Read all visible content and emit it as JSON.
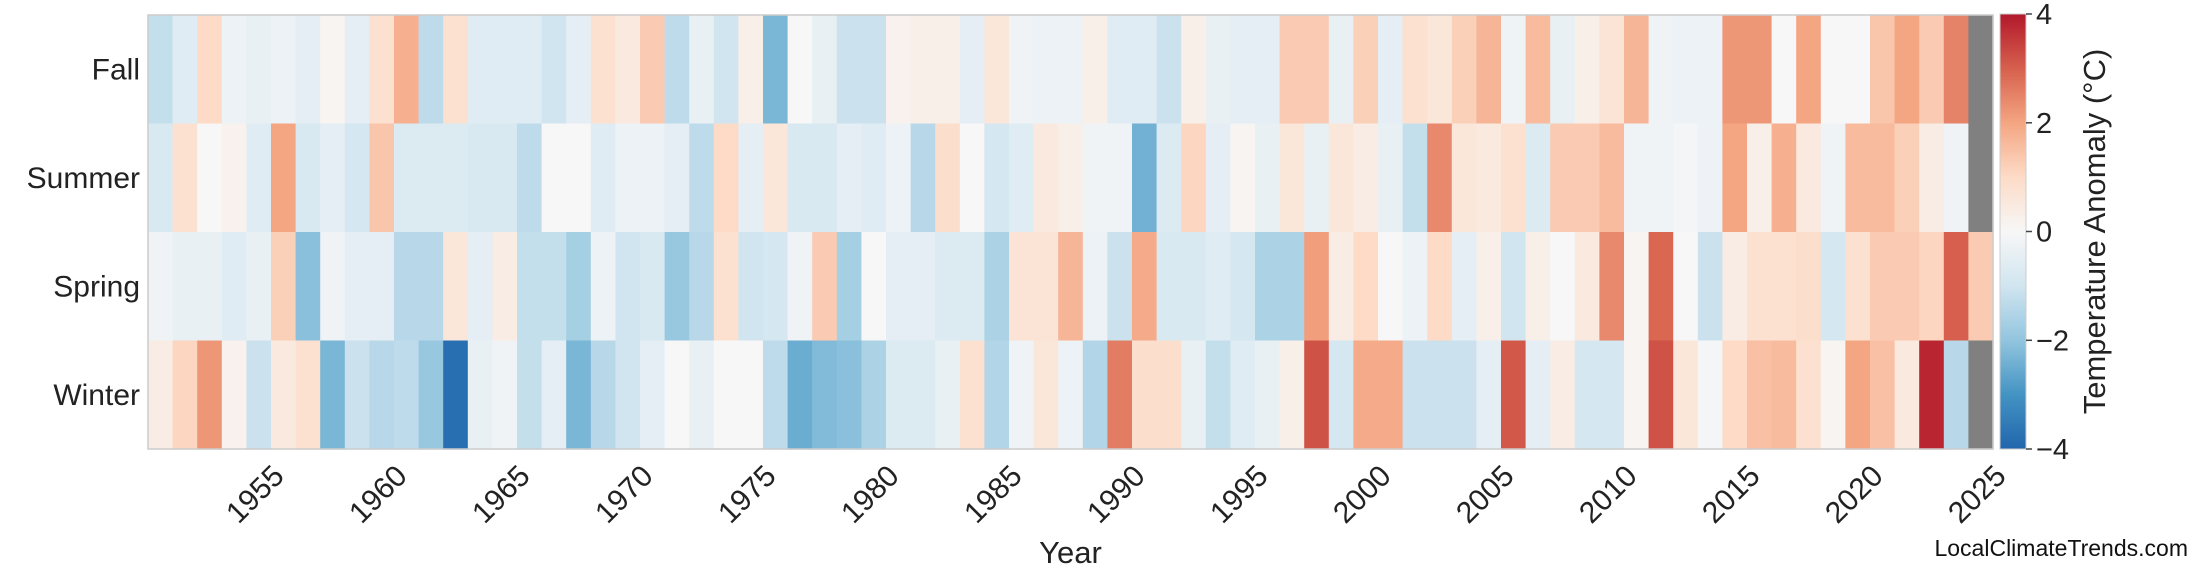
{
  "chart_data": {
    "type": "heatmap",
    "title": "",
    "xlabel": "Year",
    "colorbar_label": "Temperature Anomaly (°C)",
    "credit": "LocalClimateTrends.com",
    "rows": [
      "Fall",
      "Summer",
      "Spring",
      "Winter"
    ],
    "x_start": 1951,
    "x_end": 2025,
    "x_ticks": [
      "1955",
      "1960",
      "1965",
      "1970",
      "1975",
      "1980",
      "1985",
      "1990",
      "1995",
      "2000",
      "2005",
      "2010",
      "2015",
      "2020",
      "2025"
    ],
    "color_range": [
      -4,
      4
    ],
    "colorbar_ticks": [
      "4",
      "2",
      "0",
      "−2",
      "−4"
    ],
    "colorbar_tick_values": [
      4,
      2,
      0,
      -2,
      -4
    ],
    "missing_color": "#808080",
    "colormap": [
      "#2166ac",
      "#4393c3",
      "#92c5de",
      "#d1e5f0",
      "#f7f7f7",
      "#fddbc7",
      "#f4a582",
      "#d6604d",
      "#b2182b"
    ],
    "grid": false,
    "values": {
      "Fall": [
        -1.2,
        -0.6,
        1.0,
        -0.3,
        -0.4,
        -0.3,
        -0.5,
        0.1,
        -0.5,
        0.8,
        1.8,
        -1.3,
        0.8,
        -0.6,
        -0.6,
        -0.6,
        -1.0,
        -0.5,
        0.8,
        0.5,
        1.3,
        -1.3,
        -0.4,
        -1.0,
        0.3,
        -2.3,
        0.0,
        -0.4,
        -1.1,
        -1.1,
        0.2,
        0.3,
        0.3,
        -0.5,
        0.6,
        -0.2,
        -0.3,
        -0.3,
        0.3,
        -0.6,
        -0.6,
        -1.1,
        0.3,
        -0.4,
        -0.5,
        -0.5,
        1.3,
        1.3,
        -0.4,
        1.2,
        -0.5,
        0.8,
        0.6,
        1.2,
        1.7,
        -0.2,
        1.6,
        -0.4,
        0.3,
        0.7,
        1.7,
        -0.2,
        -0.3,
        -0.3,
        2.2,
        2.2,
        0.0,
        2.0,
        0.0,
        0.0,
        1.4,
        2.0,
        1.3,
        2.5,
        null
      ],
      "Summer": [
        -0.8,
        0.8,
        0.0,
        0.2,
        -0.6,
        2.0,
        -0.8,
        -0.5,
        -0.9,
        1.4,
        -0.7,
        -0.7,
        -0.7,
        -0.8,
        -0.8,
        -1.3,
        0.0,
        0.0,
        -0.6,
        -0.3,
        -0.3,
        -0.5,
        -1.3,
        1.0,
        -0.5,
        0.6,
        -0.8,
        -0.8,
        -0.5,
        -0.6,
        -0.3,
        -1.4,
        0.9,
        0.0,
        -0.9,
        -0.6,
        0.5,
        0.3,
        -0.2,
        -0.2,
        -2.4,
        -0.7,
        1.1,
        -0.5,
        0.1,
        -0.4,
        0.6,
        -0.4,
        0.6,
        0.4,
        -0.4,
        -1.2,
        2.4,
        0.6,
        0.5,
        0.8,
        -0.7,
        1.3,
        1.3,
        1.6,
        -0.2,
        -0.2,
        -0.1,
        -0.3,
        2.0,
        0.3,
        1.8,
        0.5,
        -0.2,
        1.6,
        1.6,
        1.2,
        0.4,
        -0.2,
        null
      ],
      "Spring": [
        -0.2,
        -0.4,
        -0.4,
        -0.6,
        -0.4,
        1.2,
        -2.1,
        -0.2,
        -0.5,
        -0.5,
        -1.4,
        -1.4,
        0.6,
        -0.5,
        0.4,
        -1.2,
        -1.2,
        -1.7,
        -0.3,
        -1.0,
        -0.8,
        -1.9,
        -1.4,
        0.8,
        -1.0,
        -0.9,
        -0.2,
        1.3,
        -1.7,
        0.0,
        -0.5,
        -0.5,
        -0.7,
        -0.7,
        -1.6,
        0.7,
        0.7,
        1.7,
        -0.3,
        -1.1,
        1.9,
        -0.8,
        -0.8,
        -0.6,
        -0.9,
        -1.6,
        -1.6,
        2.1,
        0.4,
        1.0,
        0.0,
        -0.3,
        1.0,
        -0.5,
        0.3,
        -1.0,
        0.3,
        0.0,
        0.5,
        2.4,
        0.1,
        2.9,
        0.0,
        -1.1,
        0.4,
        0.8,
        0.8,
        0.9,
        -0.9,
        0.8,
        1.3,
        1.3,
        1.1,
        3.0,
        1.3
      ],
      "Winter": [
        0.4,
        1.1,
        2.2,
        0.2,
        -1.1,
        0.5,
        0.8,
        -2.3,
        -1.1,
        -1.4,
        -1.3,
        -1.9,
        -3.8,
        -0.4,
        -0.2,
        -1.2,
        -0.5,
        -2.3,
        -1.4,
        -1.0,
        -0.5,
        0.0,
        -0.4,
        0.0,
        0.0,
        -1.3,
        -2.5,
        -2.2,
        -2.1,
        -1.6,
        -0.7,
        -0.7,
        -0.4,
        0.8,
        -1.5,
        -0.2,
        0.6,
        -0.3,
        -1.5,
        2.6,
        0.9,
        0.9,
        -0.4,
        -1.2,
        -0.6,
        -0.4,
        0.3,
        3.2,
        -0.9,
        1.9,
        1.9,
        -1.1,
        -1.1,
        -1.1,
        -0.5,
        3.1,
        -0.5,
        0.4,
        -0.9,
        -0.9,
        0.1,
        3.2,
        0.6,
        -0.1,
        1.0,
        1.5,
        1.6,
        0.8,
        0.1,
        2.0,
        1.5,
        0.5,
        3.8,
        -1.4,
        null
      ]
    }
  }
}
